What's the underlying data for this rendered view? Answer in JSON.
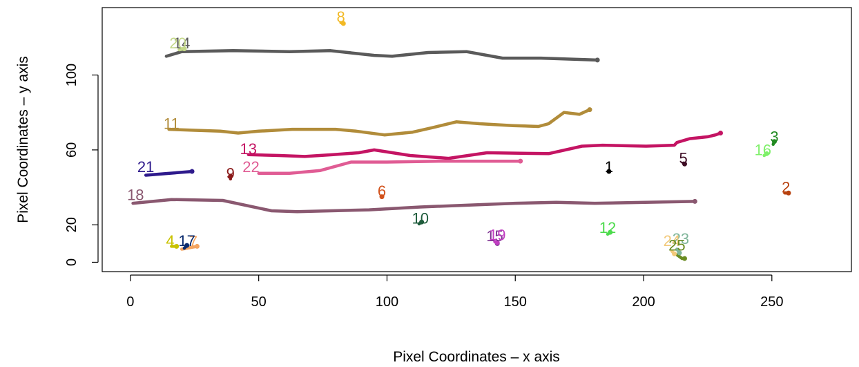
{
  "chart_data": {
    "type": "line",
    "title": "",
    "xlabel": "Pixel Coordinates – x axis",
    "ylabel": "Pixel Coordinates – y axis",
    "xlim": [
      -11,
      281
    ],
    "ylim": [
      -5,
      136
    ],
    "xticks": [
      0,
      50,
      100,
      150,
      200,
      250
    ],
    "yticks": [
      0,
      20,
      60,
      100
    ],
    "grid": false,
    "series": [
      {
        "label": "1",
        "color": "#000000",
        "lx": 186.5,
        "ly": 51,
        "points": [
          [
            186.5,
            48.5
          ]
        ]
      },
      {
        "label": "2",
        "color": "#b8420f",
        "lx": 255.5,
        "ly": 40,
        "points": [
          [
            255,
            37
          ],
          [
            256,
            37
          ],
          [
            256.5,
            37
          ]
        ]
      },
      {
        "label": "3",
        "color": "#228b22",
        "lx": 251,
        "ly": 67,
        "points": [
          [
            250.5,
            63
          ],
          [
            251,
            64.5
          ]
        ]
      },
      {
        "label": "4",
        "color": "#c9c200",
        "lx": 15.5,
        "ly": 11.5,
        "points": [
          [
            16,
            8.5
          ],
          [
            17,
            8.5
          ],
          [
            18,
            8.5
          ]
        ]
      },
      {
        "label": "5",
        "color": "#3d0c24",
        "lx": 215.5,
        "ly": 55.5,
        "points": [
          [
            215.5,
            53
          ],
          [
            216,
            52.5
          ]
        ]
      },
      {
        "label": "6",
        "color": "#d2521c",
        "lx": 98,
        "ly": 38,
        "points": [
          [
            98,
            35
          ]
        ]
      },
      {
        "label": "7",
        "color": "#f4a460",
        "lx": 24.5,
        "ly": 11,
        "points": [
          [
            20,
            7
          ],
          [
            26,
            8.5
          ]
        ]
      },
      {
        "label": "8",
        "color": "#f2b924",
        "lx": 82,
        "ly": 131,
        "points": [
          [
            82,
            128
          ],
          [
            83,
            127.5
          ]
        ]
      },
      {
        "label": "9",
        "color": "#8b1a1a",
        "lx": 39,
        "ly": 47.5,
        "points": [
          [
            39,
            44.5
          ],
          [
            39,
            46
          ]
        ]
      },
      {
        "label": "10",
        "color": "#1f5c3c",
        "lx": 113,
        "ly": 23.5,
        "points": [
          [
            112.5,
            20.5
          ],
          [
            113.5,
            21.5
          ]
        ]
      },
      {
        "label": "11",
        "color": "#b18c3a",
        "lx": 16,
        "ly": 74,
        "points": [
          [
            15,
            71
          ],
          [
            25,
            70.5
          ],
          [
            35,
            70
          ],
          [
            42,
            69
          ],
          [
            50,
            70
          ],
          [
            63,
            71
          ],
          [
            72,
            71
          ],
          [
            80,
            71
          ],
          [
            88,
            70
          ],
          [
            99,
            68
          ],
          [
            110,
            69.5
          ],
          [
            118,
            72
          ],
          [
            127,
            75
          ],
          [
            136,
            74
          ],
          [
            149,
            73
          ],
          [
            159,
            72.5
          ],
          [
            163,
            74
          ],
          [
            166,
            77
          ],
          [
            169,
            80
          ],
          [
            175,
            79
          ],
          [
            179,
            81.5
          ]
        ]
      },
      {
        "label": "12",
        "color": "#4ddb4d",
        "lx": 186,
        "ly": 18.5,
        "points": [
          [
            186,
            15
          ],
          [
            187,
            16
          ]
        ]
      },
      {
        "label": "13",
        "color": "#c41463",
        "lx": 46,
        "ly": 60.5,
        "points": [
          [
            46,
            57.5
          ],
          [
            58,
            57
          ],
          [
            68,
            56.5
          ],
          [
            79,
            57.5
          ],
          [
            89,
            58.5
          ],
          [
            95,
            60
          ],
          [
            109,
            57
          ],
          [
            124,
            55.5
          ],
          [
            139,
            58.5
          ],
          [
            163,
            58
          ],
          [
            176,
            62
          ],
          [
            184,
            62.5
          ],
          [
            201,
            62
          ],
          [
            212,
            62.5
          ],
          [
            213,
            64
          ],
          [
            218,
            66
          ],
          [
            225,
            67
          ],
          [
            228,
            68
          ],
          [
            230,
            69
          ]
        ]
      },
      {
        "label": "14",
        "color": "#5a5a5a",
        "lx": 20,
        "ly": 117,
        "points": [
          [
            14,
            110
          ],
          [
            20,
            112.5
          ],
          [
            40,
            113
          ],
          [
            62,
            112.5
          ],
          [
            78,
            113
          ],
          [
            95,
            110.5
          ],
          [
            102,
            110
          ],
          [
            116,
            112
          ],
          [
            131,
            112.5
          ],
          [
            145,
            109
          ],
          [
            160,
            109
          ],
          [
            182,
            108
          ]
        ]
      },
      {
        "label": "15",
        "color": "#7b2f8f",
        "lx": 142,
        "ly": 14,
        "points": [
          [
            142.5,
            10.5
          ],
          [
            143,
            10
          ]
        ]
      },
      {
        "label": "16",
        "color": "#7ff06a",
        "lx": 246.5,
        "ly": 60,
        "points": [
          [
            247,
            57
          ],
          [
            248,
            58
          ]
        ]
      },
      {
        "label": "17",
        "color": "#0a2b6e",
        "lx": 22,
        "ly": 11.5,
        "points": [
          [
            21,
            7.5
          ],
          [
            22,
            9
          ]
        ]
      },
      {
        "label": "18",
        "color": "#8a5870",
        "lx": 2,
        "ly": 36,
        "points": [
          [
            1,
            31.5
          ],
          [
            16,
            33.5
          ],
          [
            36,
            33
          ],
          [
            55,
            27.5
          ],
          [
            65,
            27
          ],
          [
            93,
            28
          ],
          [
            113,
            29.5
          ],
          [
            150,
            31.5
          ],
          [
            166,
            32
          ],
          [
            181,
            31.5
          ],
          [
            220,
            32.5
          ]
        ]
      },
      {
        "label": "19",
        "color": "#c13ec1",
        "lx": 143,
        "ly": 14.5,
        "points": [
          [
            142,
            11
          ],
          [
            143,
            10.5
          ]
        ]
      },
      {
        "label": "20",
        "color": "#c4d88a",
        "lx": 18.5,
        "ly": 117,
        "points": [
          [
            19,
            113.5
          ],
          [
            21,
            114
          ]
        ]
      },
      {
        "label": "21",
        "color": "#2e1a8c",
        "lx": 6,
        "ly": 51,
        "points": [
          [
            6,
            46.5
          ],
          [
            24,
            48.5
          ]
        ]
      },
      {
        "label": "22",
        "color": "#e05c94",
        "lx": 47,
        "ly": 51,
        "points": [
          [
            50,
            47.5
          ],
          [
            62,
            47.5
          ],
          [
            74,
            49
          ],
          [
            86,
            53.5
          ],
          [
            100,
            53.5
          ],
          [
            120,
            54
          ],
          [
            152,
            54
          ]
        ]
      },
      {
        "label": "23",
        "color": "#7fb59a",
        "lx": 214.5,
        "ly": 12.5,
        "points": [
          [
            213,
            7
          ],
          [
            214,
            5
          ]
        ]
      },
      {
        "label": "24",
        "color": "#f2c97a",
        "lx": 211,
        "ly": 11.5,
        "points": [
          [
            211,
            6
          ],
          [
            212,
            4.5
          ]
        ]
      },
      {
        "label": "25",
        "color": "#6a8c22",
        "lx": 213,
        "ly": 9,
        "points": [
          [
            213,
            4
          ],
          [
            215,
            2
          ],
          [
            216,
            2
          ]
        ]
      }
    ]
  }
}
